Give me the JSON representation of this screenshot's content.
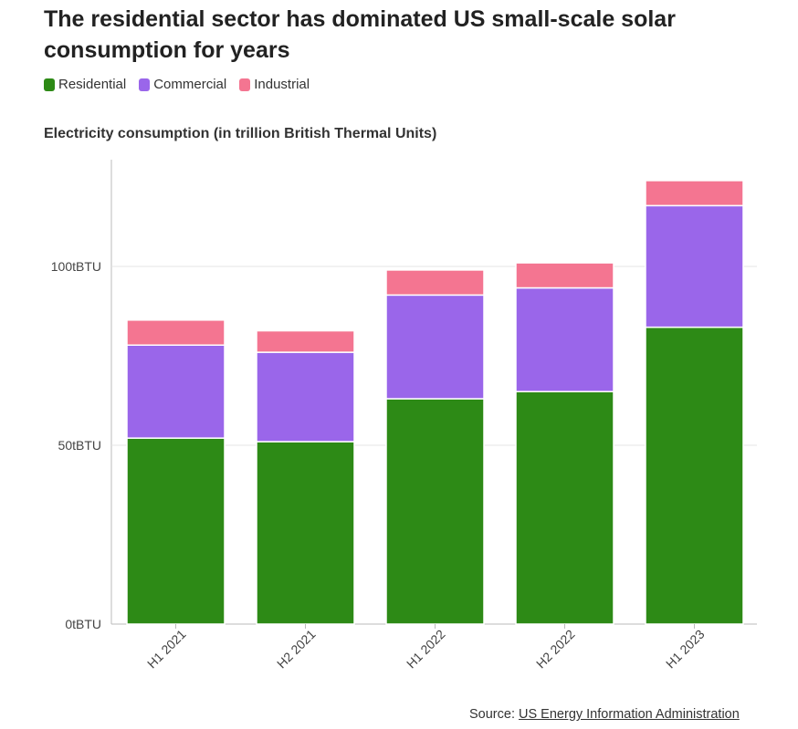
{
  "title": "The residential sector has dominated US small-scale solar consumption for years",
  "subtitle": "Electricity consumption (in trillion British Thermal Units)",
  "source": {
    "prefix": "Source:",
    "link_text": "US Energy Information Administration"
  },
  "colors": {
    "Residential": "#2d8a16",
    "Commercial": "#9a66ea",
    "Industrial": "#f47591",
    "grid": "#e4e4e4",
    "axis": "#bbbbbb"
  },
  "chart_data": {
    "type": "bar",
    "stacked": true,
    "categories": [
      "H1 2021",
      "H2 2021",
      "H1 2022",
      "H2 2022",
      "H1 2023"
    ],
    "series": [
      {
        "name": "Residential",
        "values": [
          52,
          51,
          63,
          65,
          83
        ]
      },
      {
        "name": "Commercial",
        "values": [
          26,
          25,
          29,
          29,
          34
        ]
      },
      {
        "name": "Industrial",
        "values": [
          7,
          6,
          7,
          7,
          7
        ]
      }
    ],
    "yticks": [
      0,
      50,
      100
    ],
    "ytick_labels": [
      "0tBTU",
      "50tBTU",
      "100tBTU"
    ],
    "ylim": [
      0,
      130
    ],
    "title": "The residential sector has dominated US small-scale solar consumption for years",
    "ylabel": "Electricity consumption (in trillion British Thermal Units)",
    "xlabel": "",
    "grid": true,
    "legend": "top-left"
  }
}
